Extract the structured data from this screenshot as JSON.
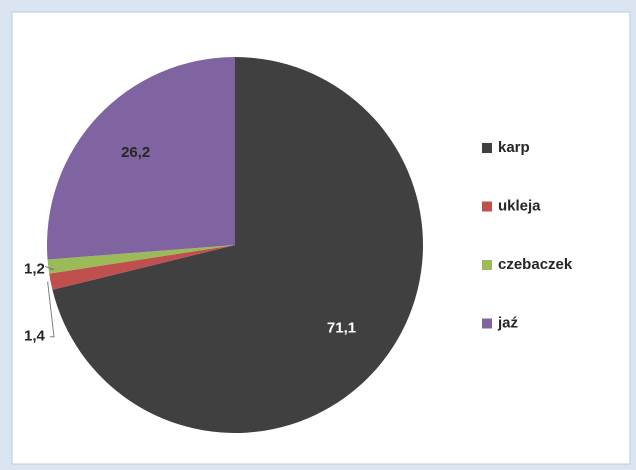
{
  "chart_data": {
    "type": "pie",
    "categories": [
      "karp",
      "ukleja",
      "czebaczek",
      "jaź"
    ],
    "values": [
      71.1,
      1.4,
      1.2,
      26.2
    ],
    "value_labels": [
      "71,1",
      "1,4",
      "1,2",
      "26,2"
    ],
    "colors": [
      "#404040",
      "#c0504d",
      "#9bbb59",
      "#8064a2"
    ],
    "legend": "right"
  }
}
